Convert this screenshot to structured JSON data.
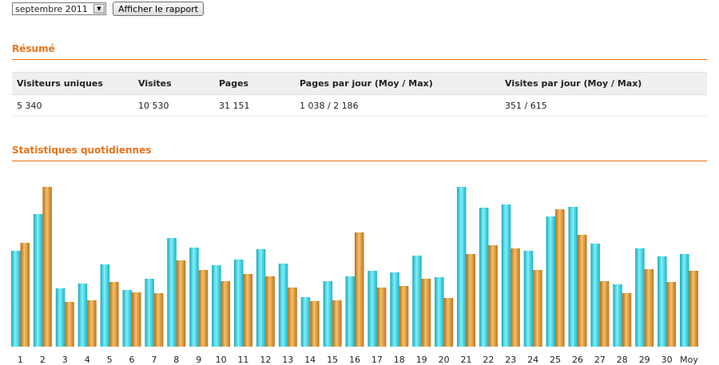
{
  "toolbar": {
    "month_select_value": "septembre 2011",
    "show_report_label": "Afficher le rapport"
  },
  "summary": {
    "title": "Résumé",
    "headers": [
      "Visiteurs uniques",
      "Visites",
      "Pages",
      "Pages par jour (Moy / Max)",
      "Visites par jour (Moy / Max)"
    ],
    "values": [
      "5 340",
      "10 530",
      "31 151",
      "1 038 / 2 186",
      "351 / 615"
    ]
  },
  "daily": {
    "title": "Statistiques quotidiennes"
  },
  "chart_data": {
    "type": "bar",
    "categories": [
      "1",
      "2",
      "3",
      "4",
      "5",
      "6",
      "7",
      "8",
      "9",
      "10",
      "11",
      "12",
      "13",
      "14",
      "15",
      "16",
      "17",
      "18",
      "19",
      "20",
      "21",
      "22",
      "23",
      "24",
      "25",
      "26",
      "27",
      "28",
      "29",
      "30",
      "Moy"
    ],
    "series": [
      {
        "color": "#29c6d6",
        "values": [
          120,
          166,
          73,
          79,
          103,
          71,
          85,
          136,
          124,
          102,
          109,
          122,
          104,
          62,
          82,
          88,
          95,
          93,
          114,
          87,
          200,
          174,
          178,
          120,
          163,
          175,
          129,
          78,
          123,
          113,
          116
        ]
      },
      {
        "color": "#d4872a",
        "values": [
          130,
          200,
          56,
          58,
          81,
          68,
          67,
          108,
          96,
          82,
          91,
          88,
          74,
          57,
          58,
          143,
          74,
          76,
          85,
          61,
          116,
          127,
          123,
          96,
          172,
          140,
          82,
          67,
          97,
          81,
          95
        ]
      }
    ],
    "ylim": [
      0,
      200
    ],
    "grid": false,
    "legend": "none"
  }
}
